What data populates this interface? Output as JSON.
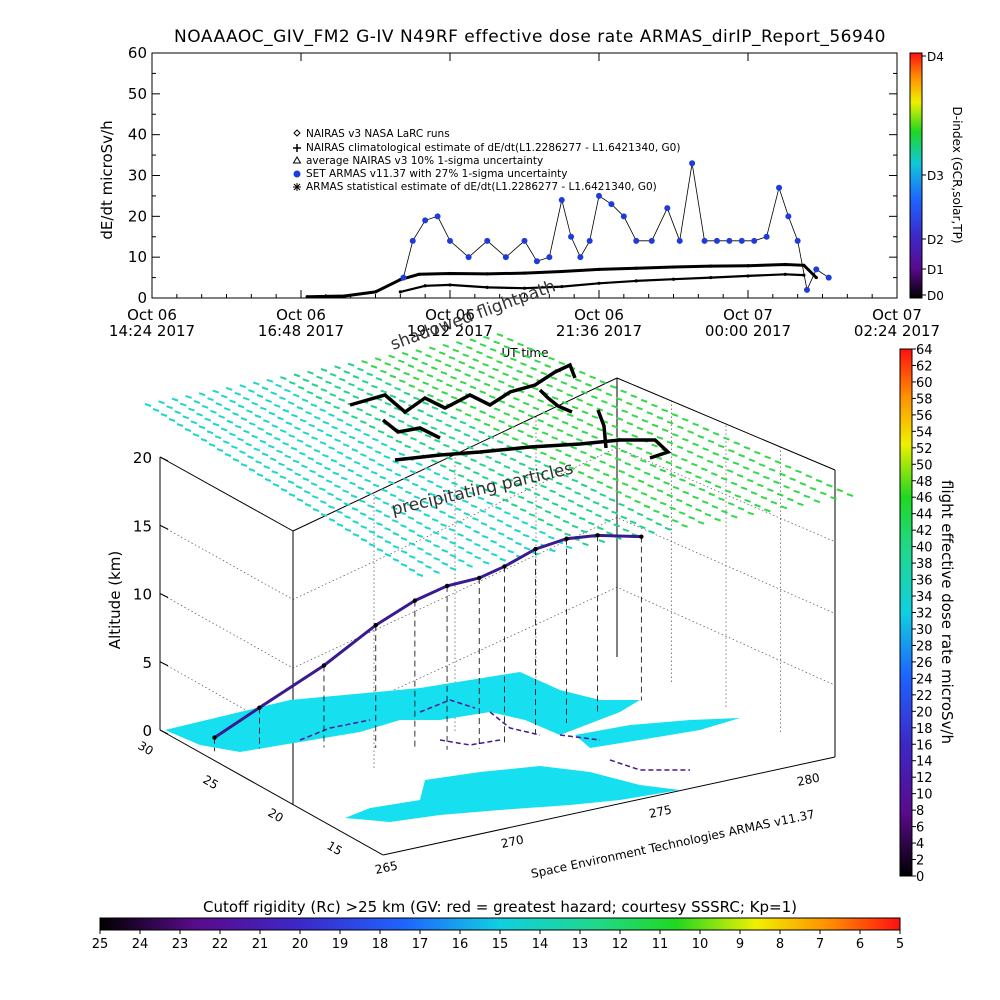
{
  "chart_data": [
    {
      "type": "line",
      "title": "NOAAAOC_GIV_FM2 G-IV    N49RF  effective dose rate ARMAS_dirIP_Report_56940",
      "ylabel": "dE/dt microSv/h",
      "xlabel": "UT time",
      "ylim": [
        0,
        60
      ],
      "yticks": [
        "0",
        "10",
        "20",
        "30",
        "40",
        "50",
        "60"
      ],
      "xlim_hours": [
        14.4,
        26.4
      ],
      "xticks": [
        {
          "hour": 14.4,
          "l1": "Oct 06",
          "l2": "14:24 2017"
        },
        {
          "hour": 16.8,
          "l1": "Oct 06",
          "l2": "16:48 2017"
        },
        {
          "hour": 19.2,
          "l1": "Oct 06",
          "l2": "19:12 2017"
        },
        {
          "hour": 21.6,
          "l1": "Oct 06",
          "l2": "21:36 2017"
        },
        {
          "hour": 24.0,
          "l1": "Oct 07",
          "l2": "00:00 2017"
        },
        {
          "hour": 26.4,
          "l1": "Oct 07",
          "l2": "02:24 2017"
        }
      ],
      "legend": [
        {
          "symbol": "diamond",
          "label": "NAIRAS v3 NASA LaRC runs"
        },
        {
          "symbol": "plus",
          "label": "NAIRAS climatological estimate of dE/dt(L1.2286277 - L1.6421340, G0)"
        },
        {
          "symbol": "triangle",
          "label": "average NAIRAS v3 10% 1-sigma uncertainty"
        },
        {
          "symbol": "dot-blue",
          "label": "SET ARMAS v11.37 with 27% 1-sigma uncertainty"
        },
        {
          "symbol": "asterisk",
          "label": "ARMAS statistical estimate of dE/dt(L1.2286277 - L1.6421340, G0)"
        }
      ],
      "series": [
        {
          "name": "ARMAS statistical estimate of dE/dt(L1.2286277 - L1.6421340, G0)",
          "color": "#000000",
          "x": [
            16.9,
            17.5,
            18.0,
            18.4,
            18.7,
            19.2,
            19.8,
            20.4,
            21.0,
            21.6,
            22.2,
            22.8,
            23.4,
            24.0,
            24.6,
            24.9,
            25.1
          ],
          "values": [
            0.3,
            0.5,
            1.5,
            4.5,
            5.8,
            6.0,
            5.9,
            6.1,
            6.5,
            7.0,
            7.3,
            7.6,
            7.8,
            7.9,
            8.2,
            8.0,
            5.0
          ]
        },
        {
          "name": "NAIRAS climatological estimate of dE/dt(L1.2286277 - L1.6421340, G0)",
          "color": "#000000",
          "x": [
            18.4,
            18.8,
            19.2,
            19.8,
            20.4,
            21.0,
            21.6,
            22.2,
            22.8,
            23.4,
            24.0,
            24.6,
            24.9
          ],
          "values": [
            1.5,
            3.0,
            3.2,
            2.6,
            2.4,
            2.8,
            3.6,
            4.2,
            4.6,
            5.0,
            5.4,
            5.8,
            5.6
          ]
        },
        {
          "name": "SET ARMAS v11.37 with 27% 1-sigma uncertainty",
          "color": "#1e3cdc",
          "x": [
            18.45,
            18.6,
            18.8,
            19.0,
            19.2,
            19.5,
            19.8,
            20.1,
            20.4,
            20.6,
            20.8,
            21.0,
            21.15,
            21.3,
            21.45,
            21.6,
            21.8,
            22.0,
            22.2,
            22.45,
            22.7,
            22.9,
            23.1,
            23.3,
            23.5,
            23.7,
            23.9,
            24.1,
            24.3,
            24.5,
            24.65,
            24.8,
            24.95,
            25.1,
            25.3
          ],
          "values": [
            5,
            14,
            19,
            20,
            14,
            10,
            14,
            10,
            14,
            9,
            10,
            24,
            15,
            10,
            14,
            25,
            23,
            20,
            14,
            14,
            22,
            14,
            33,
            14,
            14,
            14,
            14,
            14,
            15,
            27,
            20,
            14,
            2,
            7,
            5
          ]
        }
      ],
      "d_index": {
        "label": "D-index (GCR,solar,TP)",
        "ticks": [
          "D0",
          "D1",
          "D2",
          "D3",
          "D4"
        ]
      }
    },
    {
      "type": "scatter",
      "annotations": [
        "shadowed flightpath",
        "precipitating particles"
      ],
      "zlabel": "Altitude (km)",
      "zlim": [
        0,
        20
      ],
      "zticks": [
        "0",
        "5",
        "10",
        "15",
        "20"
      ],
      "lat_ticks": [
        "30",
        "25",
        "20",
        "15"
      ],
      "lon_ticks": [
        "265",
        "270",
        "275",
        "280"
      ],
      "credit": "Space Environment Technologies ARMAS v11.37",
      "flight_profile": {
        "x_lon": [
          264.5,
          266,
          268,
          269.5,
          270.5,
          271.5,
          272.5,
          273.5,
          275,
          276.5,
          278,
          280
        ],
        "y_lat": [
          28,
          27.5,
          26.5,
          25.5,
          24.5,
          24,
          23.5,
          23.5,
          24,
          24.5,
          25,
          25.5
        ],
        "z_km": [
          1,
          3,
          6,
          9,
          11,
          12,
          12.5,
          13,
          13.5,
          13.5,
          13,
          12
        ]
      },
      "right_colorbar": {
        "label": "flight effective dose rate microSv/h",
        "ticks": [
          "0",
          "2",
          "4",
          "6",
          "8",
          "10",
          "12",
          "14",
          "16",
          "18",
          "20",
          "22",
          "24",
          "26",
          "28",
          "30",
          "32",
          "34",
          "36",
          "38",
          "40",
          "42",
          "44",
          "46",
          "48",
          "50",
          "52",
          "54",
          "56",
          "58",
          "60",
          "62",
          "64"
        ]
      },
      "bottom_colorbar": {
        "label": "Cutoff rigidity (Rc) >25 km (GV: red = greatest hazard; courtesy SSSRC; Kp=1)",
        "ticks": [
          "25",
          "24",
          "23",
          "22",
          "21",
          "20",
          "19",
          "18",
          "17",
          "16",
          "15",
          "14",
          "13",
          "12",
          "11",
          "10",
          "9",
          "8",
          "7",
          "6",
          "5"
        ]
      }
    }
  ]
}
